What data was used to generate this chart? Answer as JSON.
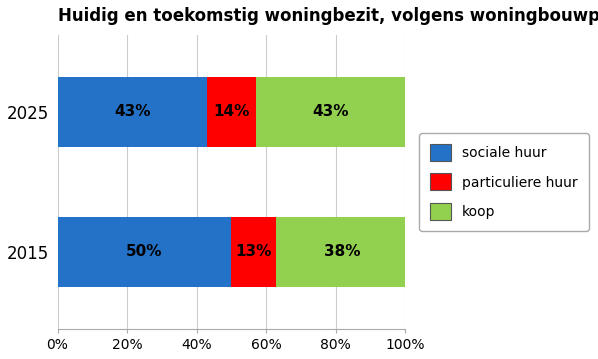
{
  "title": "Huidig en toekomstig woningbezit, volgens woningbouwplanning/trend",
  "categories": [
    "2015",
    "2025"
  ],
  "sociale_huur": [
    50,
    43
  ],
  "particuliere_huur": [
    13,
    14
  ],
  "koop": [
    38,
    43
  ],
  "sociale_huur_color": "#2472C8",
  "particuliere_huur_color": "#FF0000",
  "koop_color": "#92D050",
  "legend_labels": [
    "sociale huur",
    "particuliere huur",
    "koop"
  ],
  "xlim": [
    0,
    1.0
  ],
  "xtick_labels": [
    "0%",
    "20%",
    "40%",
    "60%",
    "80%",
    "100%"
  ],
  "xtick_values": [
    0.0,
    0.2,
    0.4,
    0.6,
    0.8,
    1.0
  ],
  "bar_label_fontsize": 11,
  "title_fontsize": 12,
  "background_color": "#FFFFFF",
  "grid_color": "#CCCCCC"
}
